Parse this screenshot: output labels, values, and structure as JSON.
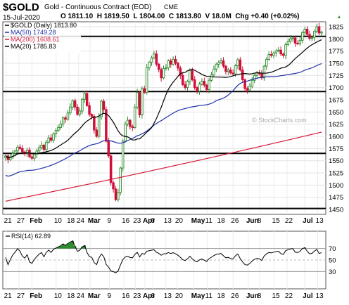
{
  "header": {
    "symbol": "$GOLD",
    "description": "Gold - Continuous Contract (EOD)",
    "exchange": "CME",
    "date": "15-Jul-2020",
    "ohlc": "O 1811.10  H 1819.50  L 1804.00  C 1813.80  V 18.0M  Chg +0.40 (+0.02%)",
    "arrow_icon": "up-triangle-icon"
  },
  "legend": [
    {
      "text": "$GOLD (Daily) 1813.80",
      "color": "#000000"
    },
    {
      "text": "MA(50) 1749.28",
      "color": "#1f2fa8"
    },
    {
      "text": "MA(200) 1608.61",
      "color": "#d81b3a"
    },
    {
      "text": "MA(20) 1785.83",
      "color": "#000000"
    }
  ],
  "watermark": "© StockCharts.com",
  "rsi_label": "RSI(14) 62.89",
  "colors": {
    "up": "#2e8b2e",
    "down": "#d0103a",
    "ma50": "#1f2fa8",
    "ma200": "#d81b3a",
    "ma20": "#000000",
    "rsi_fill": "#2e8b2e"
  },
  "chart_data": [
    {
      "type": "candlestick",
      "title": "$GOLD (Daily) 1813.80",
      "ylim": [
        1440,
        1835
      ],
      "yticks": [
        1450,
        1475,
        1500,
        1525,
        1550,
        1575,
        1600,
        1625,
        1650,
        1675,
        1700,
        1725,
        1750,
        1775,
        1800,
        1825
      ],
      "xtick_labels": [
        "21",
        "27",
        "Feb",
        "10",
        "18",
        "24",
        "Mar",
        "9",
        "16",
        "23",
        "Apr",
        "6",
        "13",
        "20",
        "May",
        "11",
        "18",
        "26",
        "Jun",
        "8",
        "15",
        "22",
        "Jul",
        "13"
      ],
      "closes": [
        1560,
        1552,
        1558,
        1565,
        1570,
        1578,
        1575,
        1568,
        1565,
        1572,
        1558,
        1555,
        1563,
        1570,
        1577,
        1582,
        1573,
        1588,
        1597,
        1592,
        1605,
        1612,
        1618,
        1625,
        1638,
        1635,
        1648,
        1660,
        1673,
        1660,
        1645,
        1652,
        1676,
        1688,
        1663,
        1645,
        1641,
        1613,
        1600,
        1640,
        1672,
        1655,
        1590,
        1560,
        1505,
        1492,
        1470,
        1485,
        1535,
        1590,
        1625,
        1633,
        1620,
        1618,
        1660,
        1690,
        1644,
        1698,
        1690,
        1741,
        1752,
        1761,
        1769,
        1748,
        1737,
        1720,
        1739,
        1741,
        1755,
        1748,
        1758,
        1750,
        1740,
        1725,
        1706,
        1700,
        1713,
        1735,
        1716,
        1700,
        1693,
        1707,
        1713,
        1705,
        1696,
        1715,
        1726,
        1738,
        1748,
        1751,
        1755,
        1744,
        1733,
        1736,
        1730,
        1728,
        1745,
        1757,
        1736,
        1716,
        1698,
        1695,
        1703,
        1715,
        1725,
        1730,
        1728,
        1720,
        1744,
        1758,
        1768,
        1766,
        1771,
        1775,
        1777,
        1769,
        1766,
        1788,
        1795,
        1800,
        1802,
        1791,
        1790,
        1797,
        1813,
        1820,
        1809,
        1801,
        1803,
        1815,
        1825,
        1812,
        1813.8
      ],
      "series": [
        {
          "name": "MA(50)",
          "start": 1520,
          "end": 1749.28,
          "last": 1749.28
        },
        {
          "name": "MA(200)",
          "start": 1467,
          "end": 1608.61,
          "last": 1608.61
        },
        {
          "name": "MA(20)",
          "last": 1785.83
        }
      ],
      "horizontal_lines": [
        1452,
        1565,
        1692,
        1805
      ]
    },
    {
      "type": "line",
      "title": "RSI(14) 62.89",
      "ylim": [
        0,
        100
      ],
      "yticks": [
        30,
        50,
        70
      ],
      "xtick_labels": [
        "21",
        "27",
        "Feb",
        "10",
        "18",
        "24",
        "Mar",
        "9",
        "16",
        "23",
        "Apr",
        "6",
        "13",
        "20",
        "May",
        "11",
        "18",
        "26",
        "Jun",
        "8",
        "15",
        "22",
        "Jul",
        "13"
      ],
      "last": 62.89
    }
  ]
}
